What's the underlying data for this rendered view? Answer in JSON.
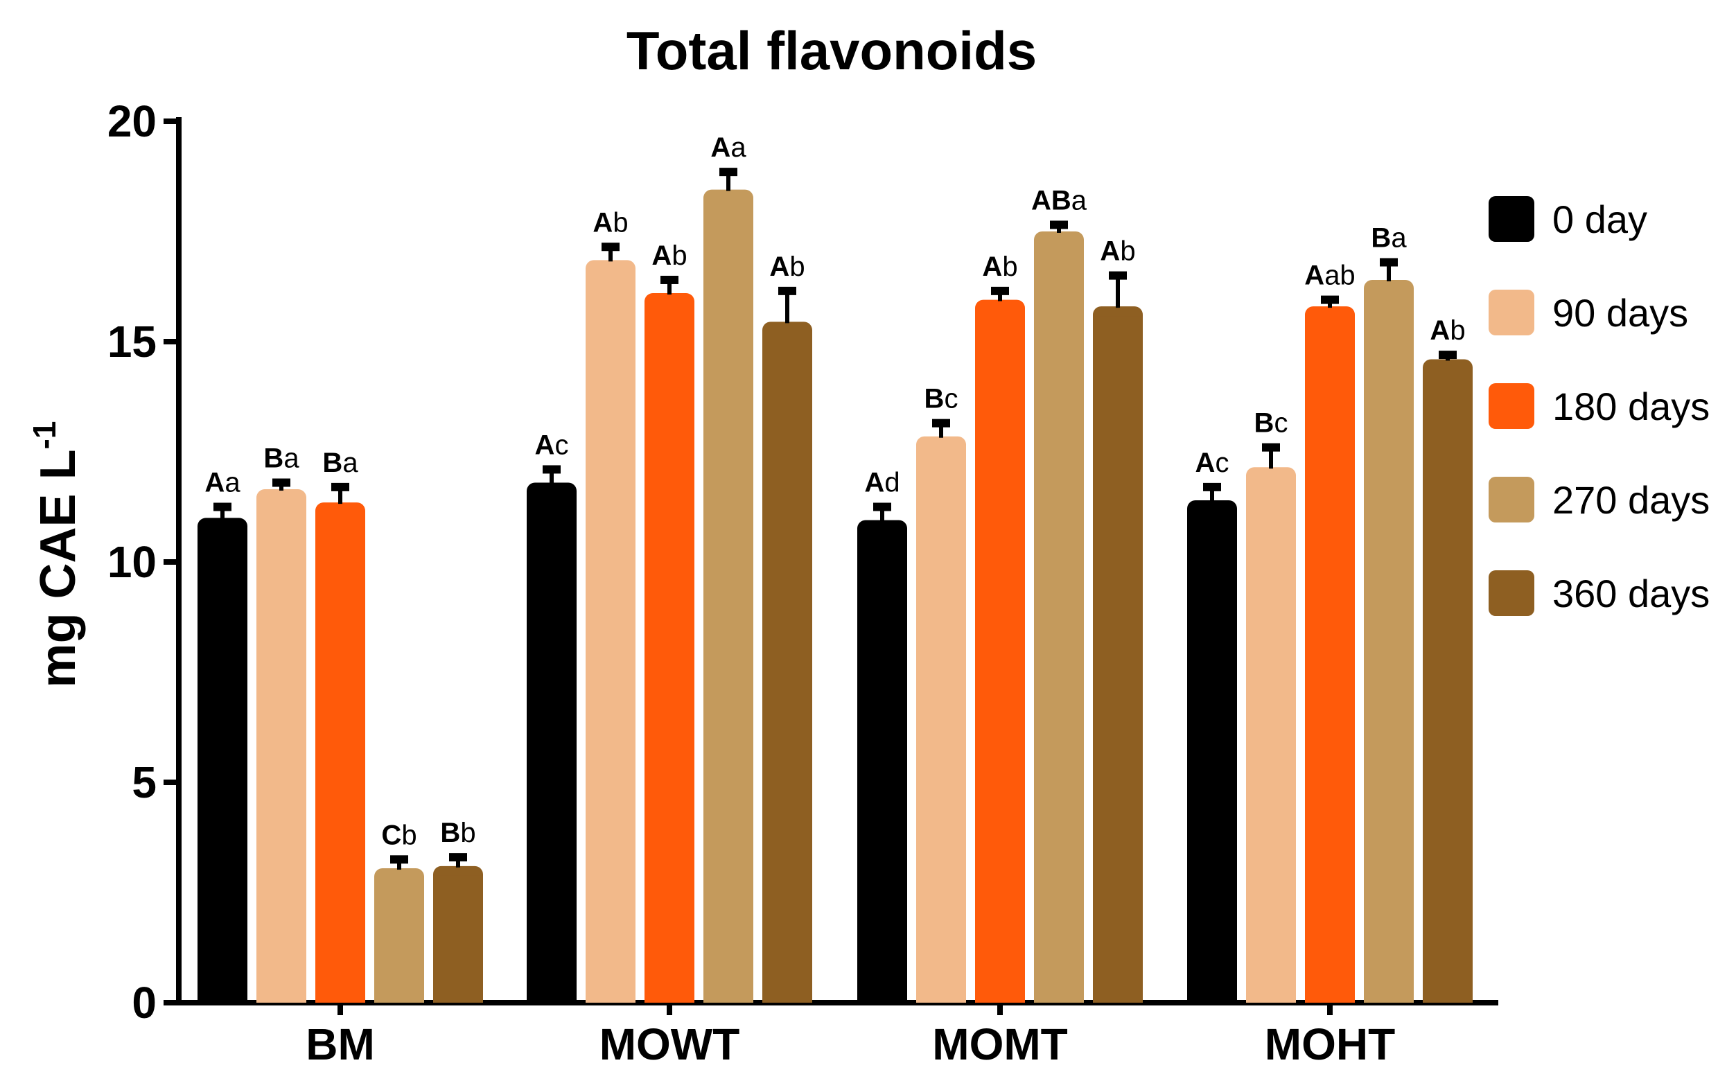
{
  "chart_data": {
    "type": "bar",
    "title": "Total flavonoids",
    "ylabel": "mg CAE L",
    "ylabel_superscript": "-1",
    "xlabel": "",
    "ylim": [
      0,
      20
    ],
    "yticks": [
      "0",
      "5",
      "10",
      "15",
      "20"
    ],
    "categories": [
      "BM",
      "MOWT",
      "MOMT",
      "MOHT"
    ],
    "legend_position": "right",
    "series": [
      {
        "name": "0 day",
        "color": "#000000",
        "values": [
          11.0,
          11.8,
          10.95,
          11.4
        ],
        "errors": [
          0.25,
          0.3,
          0.3,
          0.3
        ],
        "labels_upper": [
          "A",
          "A",
          "A",
          "A"
        ],
        "labels_lower": [
          "a",
          "c",
          "d",
          "c"
        ]
      },
      {
        "name": "90 days",
        "color": "#F2B98A",
        "values": [
          11.65,
          16.85,
          12.85,
          12.15
        ],
        "errors": [
          0.15,
          0.3,
          0.3,
          0.45
        ],
        "labels_upper": [
          "B",
          "A",
          "B",
          "B"
        ],
        "labels_lower": [
          "a",
          "b",
          "c",
          "c"
        ]
      },
      {
        "name": "180 days",
        "color": "#FF5A0A",
        "values": [
          11.35,
          16.1,
          15.95,
          15.8
        ],
        "errors": [
          0.35,
          0.3,
          0.2,
          0.15
        ],
        "labels_upper": [
          "B",
          "A",
          "A",
          "A"
        ],
        "labels_lower": [
          "a",
          "b",
          "b",
          "ab"
        ]
      },
      {
        "name": "270 days",
        "color": "#C49A5C",
        "values": [
          3.05,
          18.45,
          17.5,
          16.4
        ],
        "errors": [
          0.2,
          0.4,
          0.15,
          0.4
        ],
        "labels_upper": [
          "C",
          "A",
          "AB",
          "B"
        ],
        "labels_lower": [
          "b",
          "a",
          "a",
          "a"
        ]
      },
      {
        "name": "360 days",
        "color": "#8E5F22",
        "values": [
          3.1,
          15.45,
          15.8,
          14.6
        ],
        "errors": [
          0.2,
          0.7,
          0.7,
          0.1
        ],
        "labels_upper": [
          "B",
          "A",
          "A",
          "A"
        ],
        "labels_lower": [
          "b",
          "b",
          "b",
          "b"
        ]
      }
    ]
  }
}
